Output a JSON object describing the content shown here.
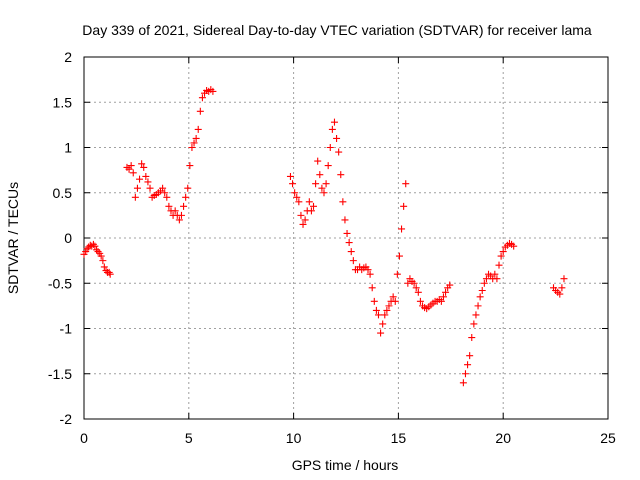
{
  "chart_data": {
    "type": "scatter",
    "title": "Day 339 of 2021, Sidereal Day-to-day VTEC variation (SDTVAR) for receiver lama",
    "xlabel": "GPS time / hours",
    "ylabel": "SDTVAR / TECUs",
    "xlim": [
      0,
      25
    ],
    "ylim": [
      -2,
      2
    ],
    "xticks": [
      "0",
      "5",
      "10",
      "15",
      "20",
      "25"
    ],
    "yticks": [
      "2",
      "1.5",
      "1",
      "0.5",
      "0",
      "-0.5",
      "-1",
      "-1.5",
      "-2"
    ],
    "grid": true,
    "marker": "plus",
    "color": "#ff0000",
    "series": [
      {
        "name": "SDTVAR",
        "x": [
          0.0,
          0.08,
          0.15,
          0.22,
          0.3,
          0.37,
          0.45,
          0.52,
          0.6,
          0.67,
          0.75,
          0.82,
          0.9,
          0.97,
          1.05,
          1.12,
          1.2,
          1.25
        ],
        "y": [
          -0.18,
          -0.15,
          -0.12,
          -0.1,
          -0.08,
          -0.09,
          -0.07,
          -0.09,
          -0.13,
          -0.15,
          -0.17,
          -0.2,
          -0.25,
          -0.32,
          -0.36,
          -0.38,
          -0.38,
          -0.4
        ]
      },
      {
        "name": "SDTVAR",
        "x": [
          2.05,
          2.15,
          2.25,
          2.35,
          2.45,
          2.55,
          2.65,
          2.75,
          2.85,
          2.95,
          3.05,
          3.15,
          3.25,
          3.35,
          3.45,
          3.55,
          3.65,
          3.75,
          3.85,
          3.95,
          4.05,
          4.15,
          4.25,
          4.35,
          4.45,
          4.55,
          4.65,
          4.75,
          4.85,
          4.95,
          5.05,
          5.15,
          5.25,
          5.35,
          5.45,
          5.55,
          5.65,
          5.75,
          5.85,
          5.95,
          6.05,
          6.15
        ],
        "y": [
          0.78,
          0.76,
          0.8,
          0.72,
          0.45,
          0.55,
          0.65,
          0.82,
          0.78,
          0.68,
          0.62,
          0.55,
          0.45,
          0.47,
          0.48,
          0.5,
          0.52,
          0.55,
          0.5,
          0.45,
          0.35,
          0.3,
          0.25,
          0.3,
          0.25,
          0.2,
          0.25,
          0.35,
          0.45,
          0.55,
          0.8,
          1.0,
          1.05,
          1.1,
          1.2,
          1.4,
          1.55,
          1.6,
          1.63,
          1.62,
          1.64,
          1.62
        ]
      },
      {
        "name": "SDTVAR",
        "x": [
          9.85,
          9.95,
          10.05,
          10.15,
          10.25,
          10.35,
          10.45,
          10.55,
          10.65,
          10.75,
          10.85,
          10.95,
          11.05,
          11.15,
          11.25,
          11.35,
          11.45,
          11.55,
          11.65,
          11.75,
          11.85,
          11.95,
          12.05,
          12.15,
          12.25,
          12.35,
          12.45,
          12.55,
          12.65,
          12.75,
          12.85,
          12.95,
          13.05,
          13.15,
          13.25,
          13.35,
          13.45,
          13.55,
          13.65,
          13.75,
          13.85,
          13.95,
          14.05,
          14.15,
          14.25,
          14.35,
          14.45,
          14.55,
          14.65,
          14.75,
          14.85,
          14.95,
          15.05,
          15.15,
          15.25,
          15.35,
          15.45,
          15.55,
          15.65,
          15.75,
          15.85,
          15.95,
          16.05,
          16.15,
          16.25,
          16.35,
          16.45,
          16.55,
          16.65,
          16.75,
          16.85,
          16.95,
          17.05,
          17.15,
          17.25,
          17.35,
          17.45
        ],
        "y": [
          0.68,
          0.6,
          0.5,
          0.45,
          0.4,
          0.25,
          0.15,
          0.2,
          0.3,
          0.4,
          0.3,
          0.35,
          0.6,
          0.85,
          0.7,
          0.55,
          0.5,
          0.6,
          0.8,
          1.0,
          1.2,
          1.28,
          1.1,
          0.95,
          0.7,
          0.4,
          0.2,
          0.05,
          -0.05,
          -0.15,
          -0.25,
          -0.35,
          -0.35,
          -0.32,
          -0.35,
          -0.33,
          -0.32,
          -0.35,
          -0.4,
          -0.55,
          -0.7,
          -0.8,
          -0.85,
          -1.05,
          -0.95,
          -0.85,
          -0.8,
          -0.75,
          -0.7,
          -0.65,
          -0.7,
          -0.4,
          -0.2,
          0.1,
          0.35,
          0.6,
          -0.5,
          -0.45,
          -0.48,
          -0.5,
          -0.55,
          -0.6,
          -0.7,
          -0.75,
          -0.77,
          -0.78,
          -0.76,
          -0.74,
          -0.72,
          -0.7,
          -0.7,
          -0.68,
          -0.7,
          -0.65,
          -0.6,
          -0.55,
          -0.52
        ]
      },
      {
        "name": "SDTVAR",
        "x": [
          18.1,
          18.2,
          18.3,
          18.4,
          18.5,
          18.6,
          18.7,
          18.8,
          18.9,
          19.0,
          19.1,
          19.2,
          19.3,
          19.4,
          19.5,
          19.6,
          19.7,
          19.8,
          19.9,
          20.0,
          20.1,
          20.2,
          20.3,
          20.4,
          20.5
        ],
        "y": [
          -1.6,
          -1.5,
          -1.4,
          -1.3,
          -1.1,
          -0.95,
          -0.85,
          -0.75,
          -0.65,
          -0.58,
          -0.5,
          -0.45,
          -0.4,
          -0.42,
          -0.45,
          -0.4,
          -0.45,
          -0.3,
          -0.2,
          -0.15,
          -0.1,
          -0.08,
          -0.06,
          -0.07,
          -0.09
        ]
      },
      {
        "name": "SDTVAR",
        "x": [
          22.4,
          22.5,
          22.6,
          22.7,
          22.8,
          22.9
        ],
        "y": [
          -0.55,
          -0.58,
          -0.6,
          -0.62,
          -0.55,
          -0.45
        ]
      }
    ]
  }
}
